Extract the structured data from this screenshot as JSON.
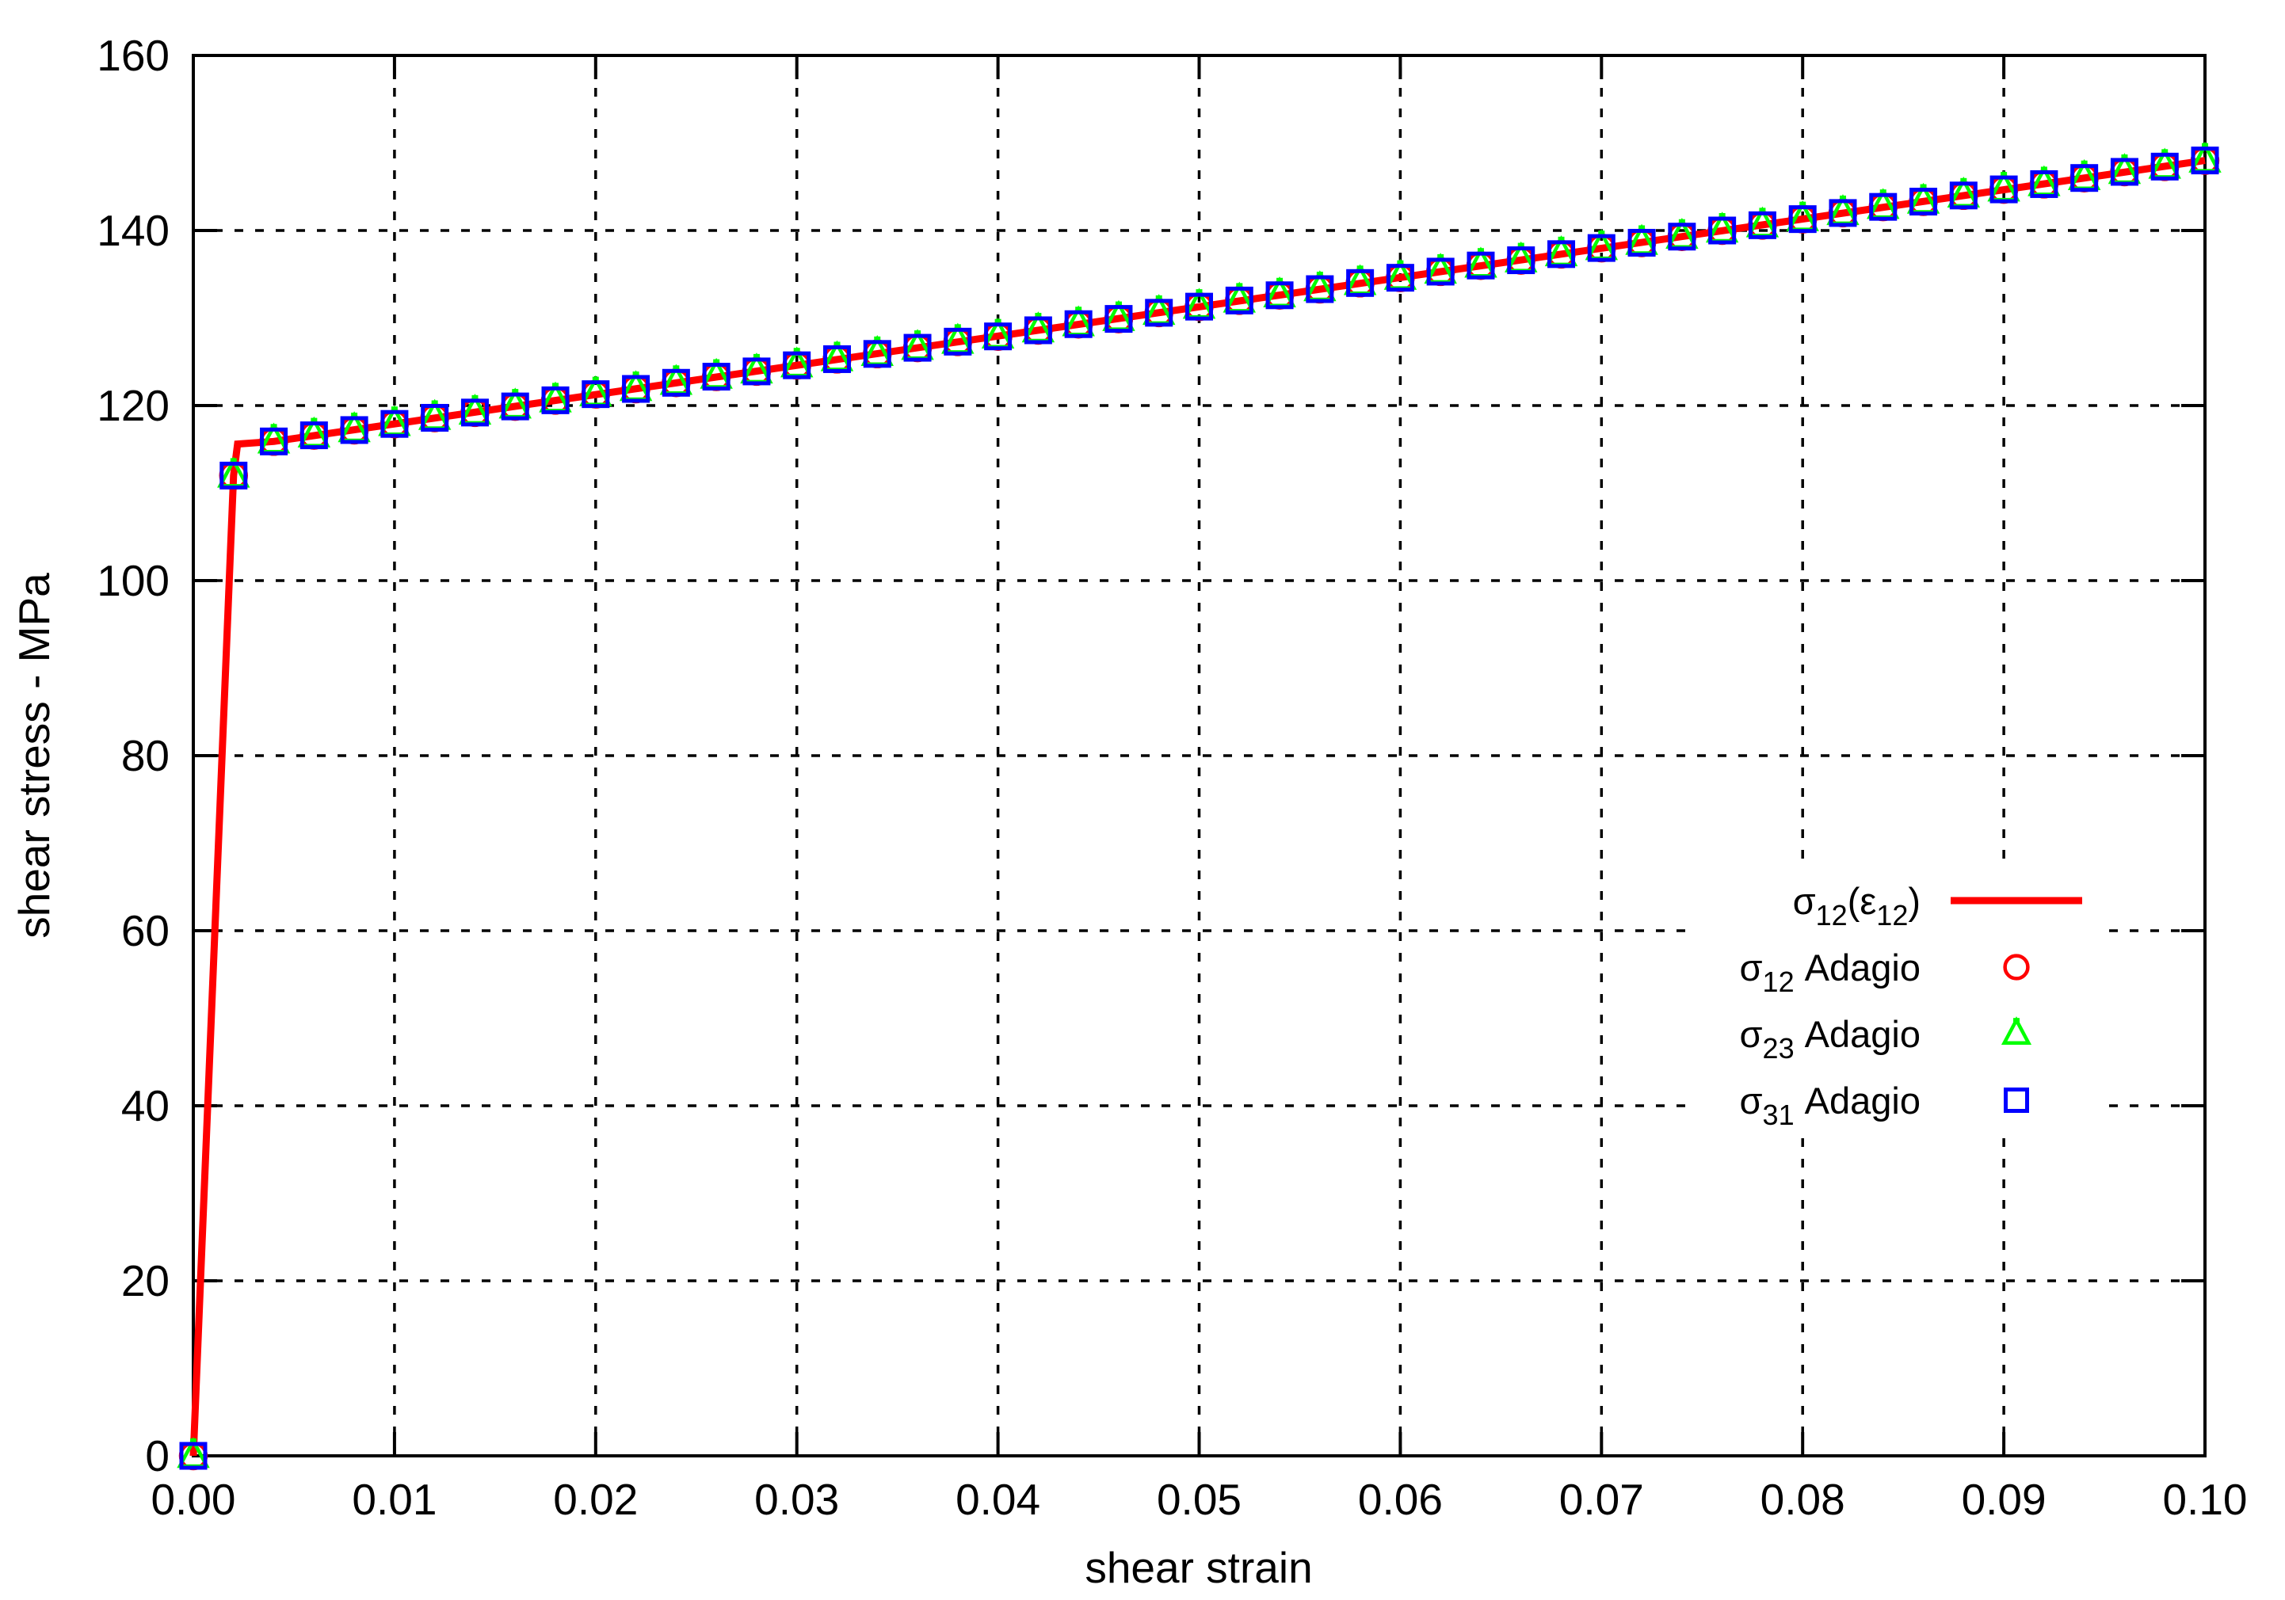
{
  "chart_data": {
    "type": "line",
    "title": "",
    "xlabel": "shear strain",
    "ylabel": "shear stress - MPa",
    "xlim": [
      0.0,
      0.1
    ],
    "ylim": [
      0,
      160
    ],
    "x_tick_values": [
      0.0,
      0.01,
      0.02,
      0.03,
      0.04,
      0.05,
      0.06,
      0.07,
      0.08,
      0.09,
      0.1
    ],
    "x_tick_labels": [
      "0.00",
      "0.01",
      "0.02",
      "0.03",
      "0.04",
      "0.05",
      "0.06",
      "0.07",
      "0.08",
      "0.09",
      "0.10"
    ],
    "y_tick_values": [
      0,
      20,
      40,
      60,
      80,
      100,
      120,
      140,
      160
    ],
    "y_tick_labels": [
      "0",
      "20",
      "40",
      "60",
      "80",
      "100",
      "120",
      "140",
      "160"
    ],
    "grid": "dotted",
    "background_color": "#ffffff",
    "axis_color": "#000000",
    "legend": {
      "position": "inside-right-middle",
      "opaque": true,
      "border": false
    },
    "markers": {
      "x": [
        0.0,
        0.002,
        0.004,
        0.006,
        0.008,
        0.01,
        0.012,
        0.014,
        0.016,
        0.018,
        0.02,
        0.022,
        0.024,
        0.026,
        0.028,
        0.03,
        0.032,
        0.034,
        0.036,
        0.038,
        0.04,
        0.042,
        0.044,
        0.046,
        0.048,
        0.05,
        0.052,
        0.054,
        0.056,
        0.058,
        0.06,
        0.062,
        0.064,
        0.066,
        0.068,
        0.07,
        0.072,
        0.074,
        0.076,
        0.078,
        0.08,
        0.082,
        0.084,
        0.086,
        0.088,
        0.09,
        0.092,
        0.094,
        0.096,
        0.098,
        0.1
      ],
      "y": [
        0,
        112.0,
        115.9,
        116.6,
        117.2,
        117.9,
        118.6,
        119.2,
        119.9,
        120.6,
        121.3,
        121.9,
        122.6,
        123.3,
        123.9,
        124.6,
        125.3,
        125.9,
        126.6,
        127.3,
        127.9,
        128.6,
        129.3,
        129.9,
        130.6,
        131.3,
        132.0,
        132.6,
        133.3,
        134.0,
        134.6,
        135.3,
        136.0,
        136.6,
        137.3,
        138.0,
        138.6,
        139.3,
        140.0,
        140.6,
        141.3,
        142.0,
        142.7,
        143.3,
        144.0,
        144.7,
        145.3,
        146.0,
        146.7,
        147.3,
        148.0
      ]
    },
    "series": [
      {
        "id": "sigma12-curve",
        "label": "σ12(ε12)",
        "label_runs": [
          [
            "σ",
            0
          ],
          [
            "12",
            1
          ],
          [
            "(ε",
            0
          ],
          [
            "12",
            1
          ],
          [
            ")",
            0
          ]
        ],
        "style": "line",
        "color": "#ff0000",
        "points": [
          [
            0,
            0
          ],
          [
            0.002,
            112.0
          ],
          [
            0.0022,
            115.6
          ],
          [
            0.004,
            115.9
          ],
          [
            0.1,
            148.0
          ]
        ]
      },
      {
        "id": "sigma12-adagio",
        "label": "σ12 Adagio",
        "label_runs": [
          [
            "σ",
            0
          ],
          [
            "12",
            1
          ],
          [
            " Adagio",
            0
          ]
        ],
        "style": "circle",
        "color": "#ff0000",
        "points_ref": "markers"
      },
      {
        "id": "sigma23-adagio",
        "label": "σ23 Adagio",
        "label_runs": [
          [
            "σ",
            0
          ],
          [
            "23",
            1
          ],
          [
            " Adagio",
            0
          ]
        ],
        "style": "triangle",
        "color": "#00ff00",
        "points_ref": "markers"
      },
      {
        "id": "sigma31-adagio",
        "label": "σ31 Adagio",
        "label_runs": [
          [
            "σ",
            0
          ],
          [
            "31",
            1
          ],
          [
            " Adagio",
            0
          ]
        ],
        "style": "square",
        "color": "#0000ff",
        "points_ref": "markers"
      }
    ]
  }
}
